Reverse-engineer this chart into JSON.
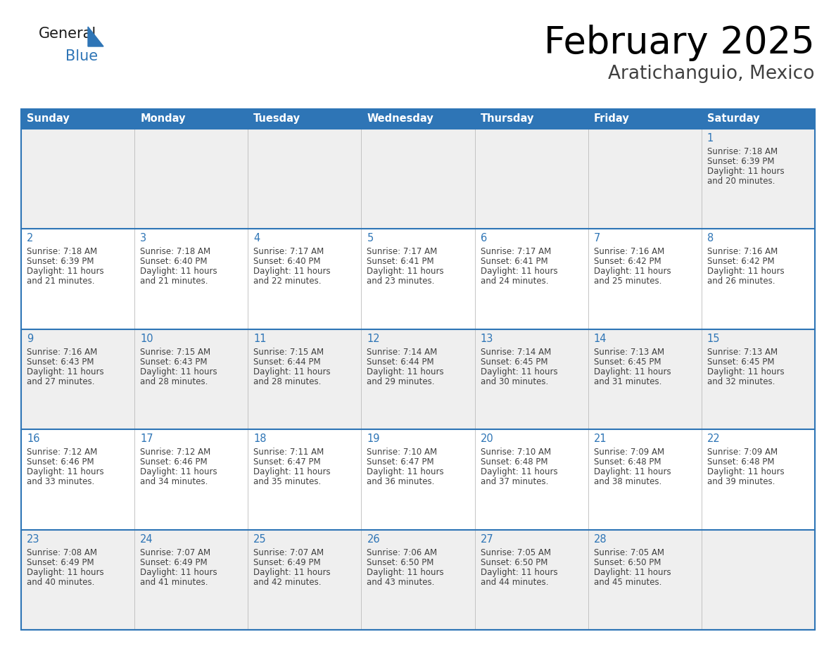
{
  "title": "February 2025",
  "subtitle": "Aratichanguio, Mexico",
  "header_color": "#2E75B6",
  "header_text_color": "#FFFFFF",
  "cell_bg_even": "#EFEFEF",
  "cell_bg_odd": "#FFFFFF",
  "border_color": "#2E75B6",
  "day_number_color": "#2E75B6",
  "cell_text_color": "#404040",
  "days_of_week": [
    "Sunday",
    "Monday",
    "Tuesday",
    "Wednesday",
    "Thursday",
    "Friday",
    "Saturday"
  ],
  "calendar_data": [
    [
      null,
      null,
      null,
      null,
      null,
      null,
      {
        "day": 1,
        "sunrise": "7:18 AM",
        "sunset": "6:39 PM",
        "daylight": "11 hours and 20 minutes."
      }
    ],
    [
      {
        "day": 2,
        "sunrise": "7:18 AM",
        "sunset": "6:39 PM",
        "daylight": "11 hours and 21 minutes."
      },
      {
        "day": 3,
        "sunrise": "7:18 AM",
        "sunset": "6:40 PM",
        "daylight": "11 hours and 21 minutes."
      },
      {
        "day": 4,
        "sunrise": "7:17 AM",
        "sunset": "6:40 PM",
        "daylight": "11 hours and 22 minutes."
      },
      {
        "day": 5,
        "sunrise": "7:17 AM",
        "sunset": "6:41 PM",
        "daylight": "11 hours and 23 minutes."
      },
      {
        "day": 6,
        "sunrise": "7:17 AM",
        "sunset": "6:41 PM",
        "daylight": "11 hours and 24 minutes."
      },
      {
        "day": 7,
        "sunrise": "7:16 AM",
        "sunset": "6:42 PM",
        "daylight": "11 hours and 25 minutes."
      },
      {
        "day": 8,
        "sunrise": "7:16 AM",
        "sunset": "6:42 PM",
        "daylight": "11 hours and 26 minutes."
      }
    ],
    [
      {
        "day": 9,
        "sunrise": "7:16 AM",
        "sunset": "6:43 PM",
        "daylight": "11 hours and 27 minutes."
      },
      {
        "day": 10,
        "sunrise": "7:15 AM",
        "sunset": "6:43 PM",
        "daylight": "11 hours and 28 minutes."
      },
      {
        "day": 11,
        "sunrise": "7:15 AM",
        "sunset": "6:44 PM",
        "daylight": "11 hours and 28 minutes."
      },
      {
        "day": 12,
        "sunrise": "7:14 AM",
        "sunset": "6:44 PM",
        "daylight": "11 hours and 29 minutes."
      },
      {
        "day": 13,
        "sunrise": "7:14 AM",
        "sunset": "6:45 PM",
        "daylight": "11 hours and 30 minutes."
      },
      {
        "day": 14,
        "sunrise": "7:13 AM",
        "sunset": "6:45 PM",
        "daylight": "11 hours and 31 minutes."
      },
      {
        "day": 15,
        "sunrise": "7:13 AM",
        "sunset": "6:45 PM",
        "daylight": "11 hours and 32 minutes."
      }
    ],
    [
      {
        "day": 16,
        "sunrise": "7:12 AM",
        "sunset": "6:46 PM",
        "daylight": "11 hours and 33 minutes."
      },
      {
        "day": 17,
        "sunrise": "7:12 AM",
        "sunset": "6:46 PM",
        "daylight": "11 hours and 34 minutes."
      },
      {
        "day": 18,
        "sunrise": "7:11 AM",
        "sunset": "6:47 PM",
        "daylight": "11 hours and 35 minutes."
      },
      {
        "day": 19,
        "sunrise": "7:10 AM",
        "sunset": "6:47 PM",
        "daylight": "11 hours and 36 minutes."
      },
      {
        "day": 20,
        "sunrise": "7:10 AM",
        "sunset": "6:48 PM",
        "daylight": "11 hours and 37 minutes."
      },
      {
        "day": 21,
        "sunrise": "7:09 AM",
        "sunset": "6:48 PM",
        "daylight": "11 hours and 38 minutes."
      },
      {
        "day": 22,
        "sunrise": "7:09 AM",
        "sunset": "6:48 PM",
        "daylight": "11 hours and 39 minutes."
      }
    ],
    [
      {
        "day": 23,
        "sunrise": "7:08 AM",
        "sunset": "6:49 PM",
        "daylight": "11 hours and 40 minutes."
      },
      {
        "day": 24,
        "sunrise": "7:07 AM",
        "sunset": "6:49 PM",
        "daylight": "11 hours and 41 minutes."
      },
      {
        "day": 25,
        "sunrise": "7:07 AM",
        "sunset": "6:49 PM",
        "daylight": "11 hours and 42 minutes."
      },
      {
        "day": 26,
        "sunrise": "7:06 AM",
        "sunset": "6:50 PM",
        "daylight": "11 hours and 43 minutes."
      },
      {
        "day": 27,
        "sunrise": "7:05 AM",
        "sunset": "6:50 PM",
        "daylight": "11 hours and 44 minutes."
      },
      {
        "day": 28,
        "sunrise": "7:05 AM",
        "sunset": "6:50 PM",
        "daylight": "11 hours and 45 minutes."
      },
      null
    ]
  ],
  "logo_general_color": "#1a1a1a",
  "logo_blue_color": "#2E75B6",
  "logo_triangle_color": "#2E75B6",
  "figsize": [
    11.88,
    9.18
  ],
  "dpi": 100
}
